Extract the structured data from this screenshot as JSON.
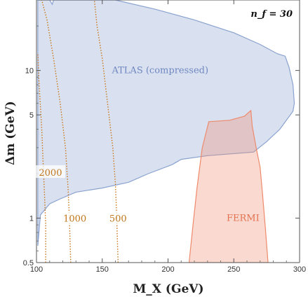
{
  "chart_data": {
    "type": "area",
    "xlabel": "M_X (GeV)",
    "ylabel": "Δm (GeV)",
    "xlim": [
      100,
      300
    ],
    "ylim": [
      0.5,
      30
    ],
    "y_scale": "log",
    "x_ticks": [
      100,
      150,
      200,
      250,
      300
    ],
    "y_ticks": [
      0.5,
      1,
      5,
      10
    ],
    "annotation": "n_f = 30",
    "colors": {
      "atlas": "#8aa2cf",
      "fermi": "#ee8a6c",
      "contour": "#c8761a"
    },
    "regions": [
      {
        "name": "ATLAS (compressed)",
        "label_at": [
          194,
          10
        ],
        "points": [
          [
            101,
            30
          ],
          [
            110,
            30
          ],
          [
            112,
            28
          ],
          [
            113,
            30
          ],
          [
            121,
            30
          ],
          [
            130,
            30
          ],
          [
            160,
            30
          ],
          [
            190,
            26
          ],
          [
            220,
            22
          ],
          [
            250,
            18
          ],
          [
            270,
            15
          ],
          [
            283,
            13
          ],
          [
            289,
            12.5
          ],
          [
            292,
            10.5
          ],
          [
            295,
            8
          ],
          [
            296,
            6
          ],
          [
            295,
            5.3
          ],
          [
            285,
            4
          ],
          [
            275,
            3.3
          ],
          [
            265,
            2.8
          ],
          [
            230,
            2.65
          ],
          [
            210,
            2.5
          ],
          [
            203,
            2.3
          ],
          [
            185,
            2.0
          ],
          [
            170,
            1.75
          ],
          [
            150,
            1.6
          ],
          [
            130,
            1.5
          ],
          [
            118,
            1.35
          ],
          [
            110,
            1.25
          ],
          [
            103,
            1.05
          ],
          [
            101,
            0.65
          ]
        ]
      },
      {
        "name": "FERMI",
        "label_at": [
          257,
          1.0
        ],
        "points": [
          [
            216,
            0.5
          ],
          [
            219,
            0.9
          ],
          [
            222,
            1.6
          ],
          [
            226,
            3.0
          ],
          [
            231,
            4.5
          ],
          [
            247,
            4.6
          ],
          [
            258,
            4.9
          ],
          [
            263,
            5.35
          ],
          [
            264,
            4.2
          ],
          [
            267,
            3.0
          ],
          [
            270,
            2.2
          ],
          [
            272,
            1.4
          ],
          [
            274,
            0.85
          ],
          [
            276,
            0.5
          ]
        ]
      }
    ],
    "contours": [
      {
        "label": "2000",
        "points": [
          [
            107,
            0.5
          ],
          [
            107,
            0.9
          ],
          [
            106,
            1.5
          ],
          [
            105,
            2.4
          ],
          [
            104,
            4
          ],
          [
            102,
            8
          ],
          [
            101,
            13
          ]
        ],
        "label_at": [
          100.5,
          2.0
        ]
      },
      {
        "label": "1000",
        "points": [
          [
            126,
            0.5
          ],
          [
            125,
            1
          ],
          [
            124,
            1.6
          ],
          [
            122,
            3
          ],
          [
            118,
            6
          ],
          [
            113,
            12
          ],
          [
            108,
            22
          ],
          [
            104,
            30
          ]
        ],
        "label_at": [
          119,
          0.98
        ]
      },
      {
        "label": "500",
        "points": [
          [
            162,
            0.5
          ],
          [
            161,
            1
          ],
          [
            160,
            1.7
          ],
          [
            158,
            3
          ],
          [
            154,
            6
          ],
          [
            150,
            12
          ],
          [
            146,
            20
          ],
          [
            144,
            30
          ]
        ],
        "label_at": [
          154,
          0.98
        ]
      }
    ]
  }
}
